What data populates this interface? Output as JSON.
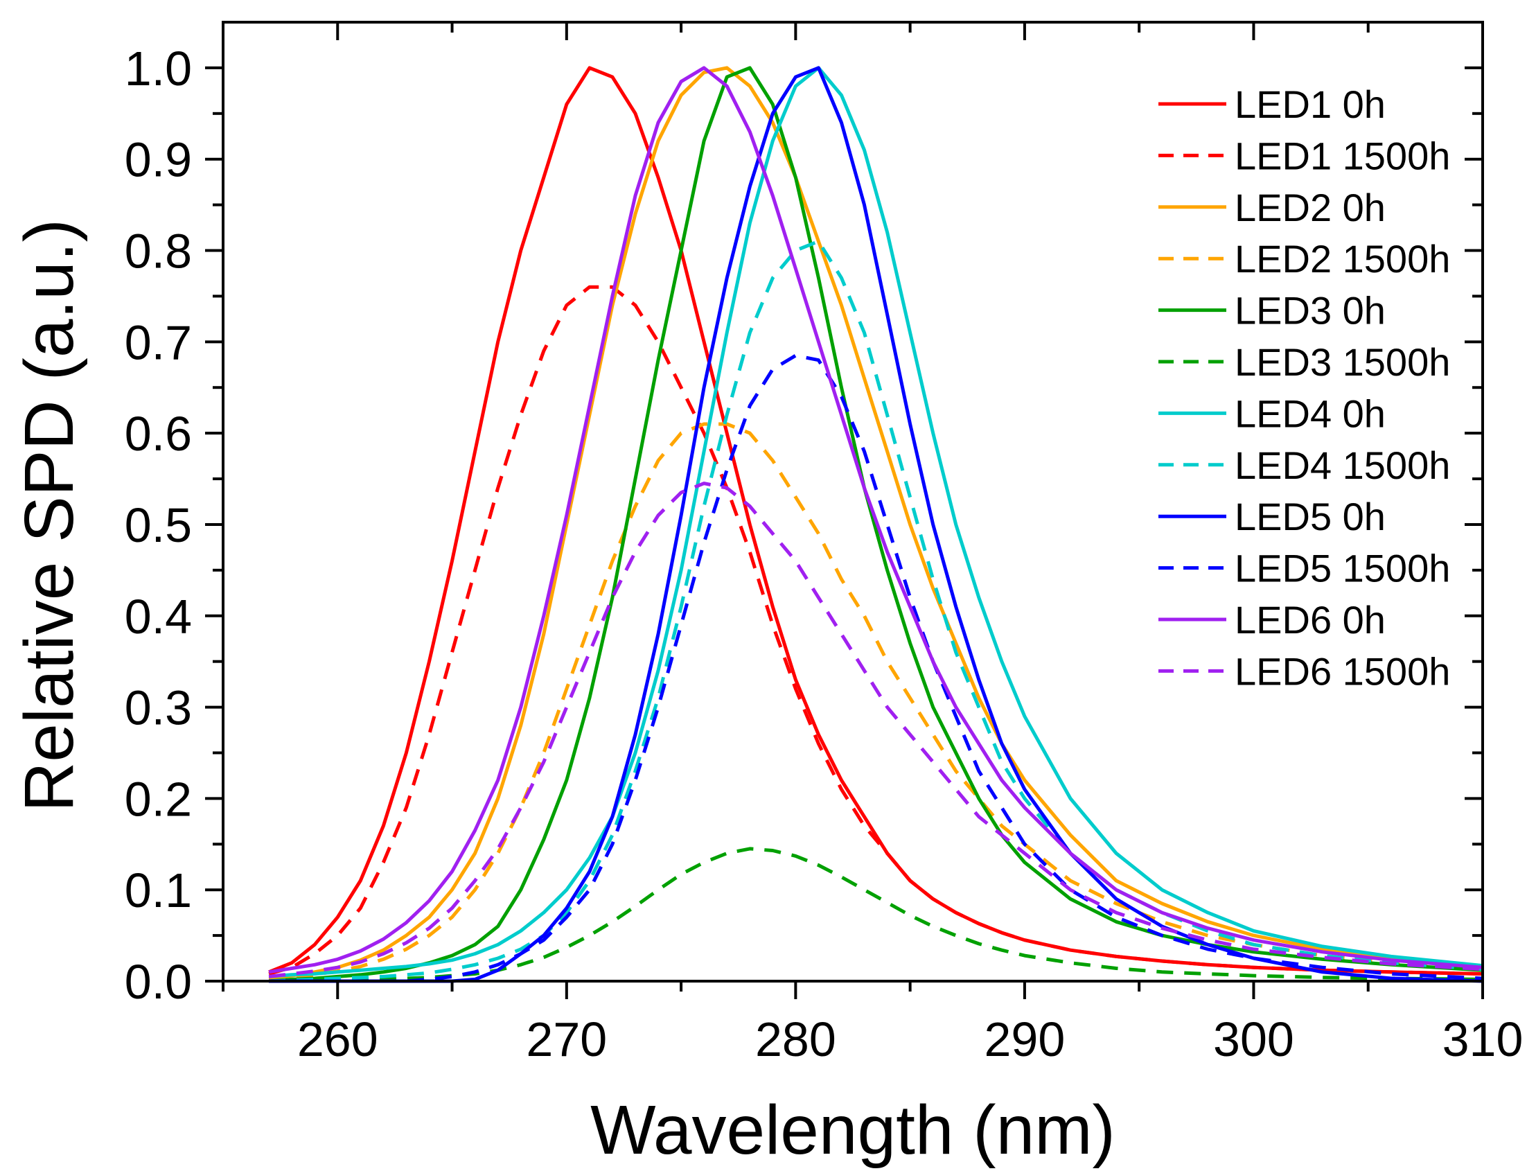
{
  "chart_data": {
    "type": "line",
    "title": "",
    "xlabel": "Wavelength (nm)",
    "ylabel": "Relative SPD (a.u.)",
    "xlim": [
      255,
      310
    ],
    "ylim": [
      0,
      1.05
    ],
    "x_ticks": [
      "260",
      "270",
      "280",
      "290",
      "300",
      "310"
    ],
    "y_ticks": [
      "0.0",
      "0.1",
      "0.2",
      "0.3",
      "0.4",
      "0.5",
      "0.6",
      "0.7",
      "0.8",
      "0.9",
      "1.0"
    ],
    "grid": false,
    "legend_position": "top-right",
    "x": [
      257,
      258,
      259,
      260,
      261,
      262,
      263,
      264,
      265,
      266,
      267,
      268,
      269,
      270,
      271,
      272,
      273,
      274,
      275,
      276,
      277,
      278,
      279,
      280,
      281,
      282,
      283,
      284,
      285,
      286,
      287,
      288,
      289,
      290,
      292,
      294,
      296,
      298,
      300,
      303,
      306,
      310
    ],
    "series": [
      {
        "name": "LED1 0h",
        "color": "#ff0000",
        "dash": "solid",
        "values": [
          0.01,
          0.02,
          0.04,
          0.07,
          0.11,
          0.17,
          0.25,
          0.35,
          0.46,
          0.58,
          0.7,
          0.8,
          0.88,
          0.96,
          1.0,
          0.99,
          0.95,
          0.88,
          0.8,
          0.7,
          0.6,
          0.5,
          0.41,
          0.33,
          0.27,
          0.22,
          0.18,
          0.14,
          0.11,
          0.09,
          0.075,
          0.063,
          0.053,
          0.045,
          0.034,
          0.027,
          0.022,
          0.018,
          0.015,
          0.012,
          0.01,
          0.008
        ]
      },
      {
        "name": "LED1 1500h",
        "color": "#ff0000",
        "dash": "dashed",
        "values": [
          0.008,
          0.015,
          0.03,
          0.05,
          0.08,
          0.13,
          0.19,
          0.27,
          0.36,
          0.45,
          0.54,
          0.62,
          0.69,
          0.74,
          0.76,
          0.76,
          0.74,
          0.7,
          0.65,
          0.6,
          0.54,
          0.47,
          0.39,
          0.32,
          0.26,
          0.21,
          0.17,
          0.14,
          0.11,
          0.09,
          0.075,
          0.063,
          0.053,
          0.045,
          0.034,
          0.027,
          0.022,
          0.018,
          0.015,
          0.012,
          0.01,
          0.008
        ]
      },
      {
        "name": "LED2 0h",
        "color": "#ffa500",
        "dash": "solid",
        "values": [
          0.003,
          0.006,
          0.01,
          0.015,
          0.023,
          0.034,
          0.05,
          0.07,
          0.1,
          0.14,
          0.2,
          0.28,
          0.38,
          0.5,
          0.62,
          0.74,
          0.84,
          0.92,
          0.97,
          0.995,
          1.0,
          0.98,
          0.94,
          0.88,
          0.81,
          0.74,
          0.66,
          0.58,
          0.5,
          0.43,
          0.37,
          0.31,
          0.26,
          0.22,
          0.16,
          0.11,
          0.085,
          0.065,
          0.05,
          0.035,
          0.025,
          0.015
        ]
      },
      {
        "name": "LED2 1500h",
        "color": "#ffa500",
        "dash": "dashed",
        "values": [
          0.002,
          0.004,
          0.007,
          0.011,
          0.016,
          0.024,
          0.035,
          0.05,
          0.07,
          0.1,
          0.14,
          0.19,
          0.25,
          0.32,
          0.39,
          0.46,
          0.52,
          0.57,
          0.6,
          0.61,
          0.61,
          0.6,
          0.57,
          0.53,
          0.49,
          0.44,
          0.4,
          0.35,
          0.31,
          0.27,
          0.23,
          0.2,
          0.17,
          0.15,
          0.11,
          0.085,
          0.065,
          0.05,
          0.04,
          0.028,
          0.02,
          0.013
        ]
      },
      {
        "name": "LED3 0h",
        "color": "#00a000",
        "dash": "solid",
        "values": [
          0.0,
          0.002,
          0.003,
          0.005,
          0.007,
          0.01,
          0.014,
          0.02,
          0.028,
          0.04,
          0.06,
          0.1,
          0.155,
          0.22,
          0.31,
          0.42,
          0.55,
          0.68,
          0.8,
          0.92,
          0.99,
          1.0,
          0.96,
          0.88,
          0.77,
          0.65,
          0.54,
          0.45,
          0.37,
          0.3,
          0.25,
          0.2,
          0.16,
          0.13,
          0.09,
          0.065,
          0.05,
          0.04,
          0.032,
          0.024,
          0.018,
          0.012
        ]
      },
      {
        "name": "LED3 1500h",
        "color": "#00a000",
        "dash": "dashed",
        "values": [
          0.0,
          0.0,
          0.0,
          0.001,
          0.001,
          0.002,
          0.003,
          0.004,
          0.006,
          0.008,
          0.012,
          0.018,
          0.026,
          0.037,
          0.05,
          0.065,
          0.082,
          0.1,
          0.117,
          0.13,
          0.14,
          0.145,
          0.143,
          0.137,
          0.127,
          0.114,
          0.1,
          0.086,
          0.072,
          0.06,
          0.05,
          0.041,
          0.034,
          0.028,
          0.02,
          0.014,
          0.01,
          0.008,
          0.006,
          0.004,
          0.003,
          0.002
        ]
      },
      {
        "name": "LED4 0h",
        "color": "#00cccc",
        "dash": "solid",
        "values": [
          0.005,
          0.007,
          0.008,
          0.01,
          0.012,
          0.014,
          0.016,
          0.019,
          0.023,
          0.03,
          0.04,
          0.055,
          0.075,
          0.1,
          0.135,
          0.18,
          0.25,
          0.34,
          0.45,
          0.58,
          0.71,
          0.83,
          0.92,
          0.98,
          1.0,
          0.97,
          0.91,
          0.82,
          0.71,
          0.6,
          0.5,
          0.42,
          0.35,
          0.29,
          0.2,
          0.14,
          0.1,
          0.075,
          0.055,
          0.038,
          0.027,
          0.017
        ]
      },
      {
        "name": "LED4 1500h",
        "color": "#00cccc",
        "dash": "dashed",
        "values": [
          0.0,
          0.001,
          0.002,
          0.003,
          0.004,
          0.005,
          0.007,
          0.009,
          0.013,
          0.018,
          0.025,
          0.035,
          0.05,
          0.075,
          0.11,
          0.16,
          0.23,
          0.31,
          0.41,
          0.52,
          0.62,
          0.71,
          0.77,
          0.8,
          0.81,
          0.77,
          0.71,
          0.62,
          0.53,
          0.44,
          0.36,
          0.3,
          0.24,
          0.2,
          0.14,
          0.1,
          0.075,
          0.055,
          0.04,
          0.028,
          0.02,
          0.013
        ]
      },
      {
        "name": "LED5 0h",
        "color": "#0000ff",
        "dash": "solid",
        "values": [
          0.0,
          0.0,
          0.0,
          0.0,
          0.0,
          0.0,
          0.0,
          0.0,
          0.0,
          0.002,
          0.012,
          0.03,
          0.05,
          0.08,
          0.12,
          0.18,
          0.27,
          0.38,
          0.51,
          0.65,
          0.77,
          0.87,
          0.95,
          0.99,
          1.0,
          0.94,
          0.85,
          0.73,
          0.61,
          0.5,
          0.41,
          0.33,
          0.26,
          0.21,
          0.14,
          0.09,
          0.06,
          0.04,
          0.025,
          0.01,
          0.003,
          0.0
        ]
      },
      {
        "name": "LED5 1500h",
        "color": "#0000ff",
        "dash": "dashed",
        "values": [
          0.0,
          0.0,
          0.0,
          0.0,
          0.0,
          0.0,
          0.0,
          0.002,
          0.005,
          0.01,
          0.018,
          0.03,
          0.045,
          0.07,
          0.1,
          0.15,
          0.22,
          0.3,
          0.39,
          0.48,
          0.56,
          0.63,
          0.67,
          0.685,
          0.68,
          0.64,
          0.58,
          0.5,
          0.42,
          0.35,
          0.29,
          0.23,
          0.19,
          0.15,
          0.1,
          0.07,
          0.05,
          0.035,
          0.025,
          0.015,
          0.008,
          0.003
        ]
      },
      {
        "name": "LED6 0h",
        "color": "#a020f0",
        "dash": "solid",
        "values": [
          0.01,
          0.014,
          0.018,
          0.024,
          0.033,
          0.046,
          0.064,
          0.088,
          0.12,
          0.165,
          0.22,
          0.3,
          0.4,
          0.51,
          0.63,
          0.75,
          0.86,
          0.94,
          0.985,
          1.0,
          0.98,
          0.93,
          0.86,
          0.78,
          0.7,
          0.62,
          0.54,
          0.47,
          0.41,
          0.35,
          0.3,
          0.26,
          0.22,
          0.19,
          0.14,
          0.1,
          0.075,
          0.058,
          0.045,
          0.032,
          0.023,
          0.015
        ]
      },
      {
        "name": "LED6 1500h",
        "color": "#a020f0",
        "dash": "dashed",
        "values": [
          0.005,
          0.008,
          0.011,
          0.015,
          0.021,
          0.03,
          0.042,
          0.058,
          0.08,
          0.11,
          0.145,
          0.19,
          0.24,
          0.3,
          0.36,
          0.42,
          0.47,
          0.51,
          0.535,
          0.545,
          0.54,
          0.52,
          0.49,
          0.46,
          0.42,
          0.38,
          0.34,
          0.3,
          0.27,
          0.24,
          0.21,
          0.18,
          0.16,
          0.14,
          0.1,
          0.075,
          0.058,
          0.045,
          0.035,
          0.026,
          0.019,
          0.013
        ]
      }
    ]
  }
}
